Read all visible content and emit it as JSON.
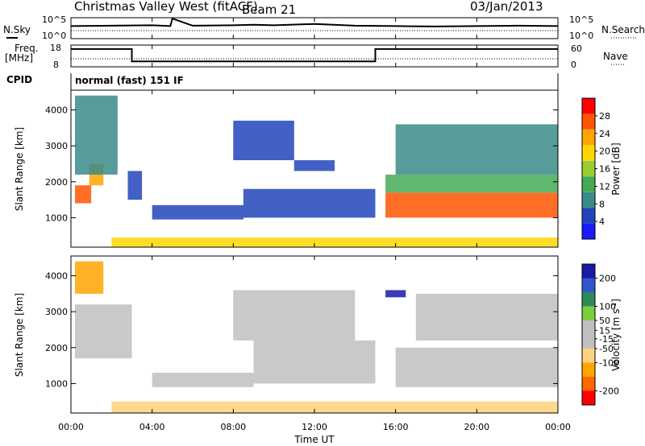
{
  "header": {
    "station": "Christmas Valley West (fitACF)",
    "beam": "Beam 21",
    "date": "03/Jan/2013"
  },
  "top_panels": {
    "nsky_label": "N.Sky",
    "nsearch_label": "N.Search",
    "freq_label_line1": "Freq.",
    "freq_label_line2": "[MHz]",
    "nave_label": "Nave",
    "cpid_label": "CPID",
    "cpid_value": "normal (fast) 151 IF",
    "noise_ticks_left": [
      "10^5",
      "10^0"
    ],
    "noise_ticks_right": [
      "10^5",
      "10^0"
    ],
    "freq_ticks": [
      "18",
      "8"
    ],
    "nave_ticks": [
      "60",
      "0"
    ]
  },
  "xaxis": {
    "label": "Time UT",
    "ticks": [
      "00:00",
      "04:00",
      "08:00",
      "12:00",
      "16:00",
      "20:00",
      "00:00"
    ]
  },
  "colors": {
    "power_scale": [
      "#1a1aff",
      "#2244bb",
      "#3a8a8a",
      "#44aa55",
      "#9acd32",
      "#ffd700",
      "#ffa500",
      "#ff5500",
      "#ff0000"
    ],
    "velocity_scale": [
      "#ff0000",
      "#ff6600",
      "#ffa500",
      "#ffd27f",
      "#c0c0c0",
      "#c0c0c0",
      "#7ccd3c",
      "#2e8b57",
      "#3355cc",
      "#1a1aaa"
    ]
  },
  "chart_data": [
    {
      "type": "line",
      "name": "noise-panel",
      "title": "",
      "xlabel": "",
      "ylabel": "N.Sky",
      "x_hours": [
        0,
        2,
        4,
        4.9,
        5,
        6,
        8,
        9,
        10,
        12,
        14,
        16,
        18,
        20,
        22,
        24
      ],
      "series": [
        {
          "name": "N.Sky",
          "values": [
            3,
            3.1,
            3.2,
            3.0,
            4.8,
            3.1,
            3.2,
            3.3,
            3.2,
            3.5,
            3.1,
            3.0,
            2.9,
            3.0,
            3.1,
            3.0
          ]
        }
      ],
      "ylim": [
        0,
        5
      ],
      "yscale": "log"
    },
    {
      "type": "line",
      "name": "frequency-panel",
      "title": "",
      "xlabel": "",
      "ylabel": "Freq. [MHz]",
      "x_hours": [
        0,
        3,
        3,
        15,
        15,
        24
      ],
      "series": [
        {
          "name": "Freq.",
          "values": [
            16.2,
            16.2,
            10.5,
            10.5,
            16.2,
            16.2
          ]
        }
      ],
      "ylim": [
        8,
        18
      ]
    },
    {
      "type": "heatmap",
      "name": "power-panel",
      "title": "",
      "xlabel": "Time UT",
      "ylabel": "Slant Range [km]",
      "xlim_hours": [
        0,
        24
      ],
      "ylim": [
        180,
        4550
      ],
      "yticks": [
        1000,
        2000,
        3000,
        4000
      ],
      "colorbar": {
        "label": "Power [dB]",
        "ticks": [
          4,
          8,
          12,
          16,
          20,
          24,
          28
        ],
        "range": [
          0,
          32
        ]
      },
      "regions": [
        {
          "t": [
            0.2,
            1.0
          ],
          "r": [
            1400,
            1900
          ],
          "v": 27
        },
        {
          "t": [
            0.9,
            1.6
          ],
          "r": [
            1900,
            2500
          ],
          "v": 22
        },
        {
          "t": [
            0.2,
            2.3
          ],
          "r": [
            2200,
            4400
          ],
          "v": 10
        },
        {
          "t": [
            2.8,
            3.5
          ],
          "r": [
            1500,
            2300
          ],
          "v": 4
        },
        {
          "t": [
            4.0,
            8.5
          ],
          "r": [
            950,
            1350
          ],
          "v": 6
        },
        {
          "t": [
            8.5,
            15.0
          ],
          "r": [
            1000,
            1800
          ],
          "v": 5
        },
        {
          "t": [
            8.0,
            11.0
          ],
          "r": [
            2600,
            3700
          ],
          "v": 4
        },
        {
          "t": [
            11.0,
            13.0
          ],
          "r": [
            2300,
            2600
          ],
          "v": 4
        },
        {
          "t": [
            15.5,
            24.0
          ],
          "r": [
            1000,
            1700
          ],
          "v": 28
        },
        {
          "t": [
            15.5,
            24.0
          ],
          "r": [
            1700,
            2200
          ],
          "v": 14
        },
        {
          "t": [
            16.0,
            24.0
          ],
          "r": [
            2200,
            3600
          ],
          "v": 10
        },
        {
          "t": [
            2.0,
            24.0
          ],
          "r": [
            180,
            450
          ],
          "v": 18
        }
      ]
    },
    {
      "type": "heatmap",
      "name": "velocity-panel",
      "title": "",
      "xlabel": "Time UT",
      "ylabel": "Slant Range [km]",
      "xlim_hours": [
        0,
        24
      ],
      "ylim": [
        180,
        4550
      ],
      "yticks": [
        1000,
        2000,
        3000,
        4000
      ],
      "colorbar": {
        "label": "Velocity [m s-1]",
        "ticks": [
          -200,
          -100,
          -50,
          -15,
          15,
          50,
          100,
          200
        ],
        "range": [
          -250,
          250
        ]
      },
      "regions": [
        {
          "t": [
            0.2,
            1.6
          ],
          "r": [
            3500,
            4400
          ],
          "v": -150
        },
        {
          "t": [
            0.2,
            3.0
          ],
          "r": [
            1700,
            3200
          ],
          "v": 0
        },
        {
          "t": [
            4.0,
            9.0
          ],
          "r": [
            900,
            1300
          ],
          "v": 0
        },
        {
          "t": [
            9.0,
            15.0
          ],
          "r": [
            1000,
            2200
          ],
          "v": -40
        },
        {
          "t": [
            8.0,
            14.0
          ],
          "r": [
            2200,
            3600
          ],
          "v": -20
        },
        {
          "t": [
            15.5,
            16.5
          ],
          "r": [
            3400,
            3600
          ],
          "v": 200
        },
        {
          "t": [
            16.0,
            24.0
          ],
          "r": [
            900,
            2000
          ],
          "v": 0
        },
        {
          "t": [
            17.0,
            24.0
          ],
          "r": [
            2200,
            3500
          ],
          "v": 20
        },
        {
          "t": [
            2.0,
            24.0
          ],
          "r": [
            180,
            500
          ],
          "v": -60
        }
      ]
    }
  ]
}
